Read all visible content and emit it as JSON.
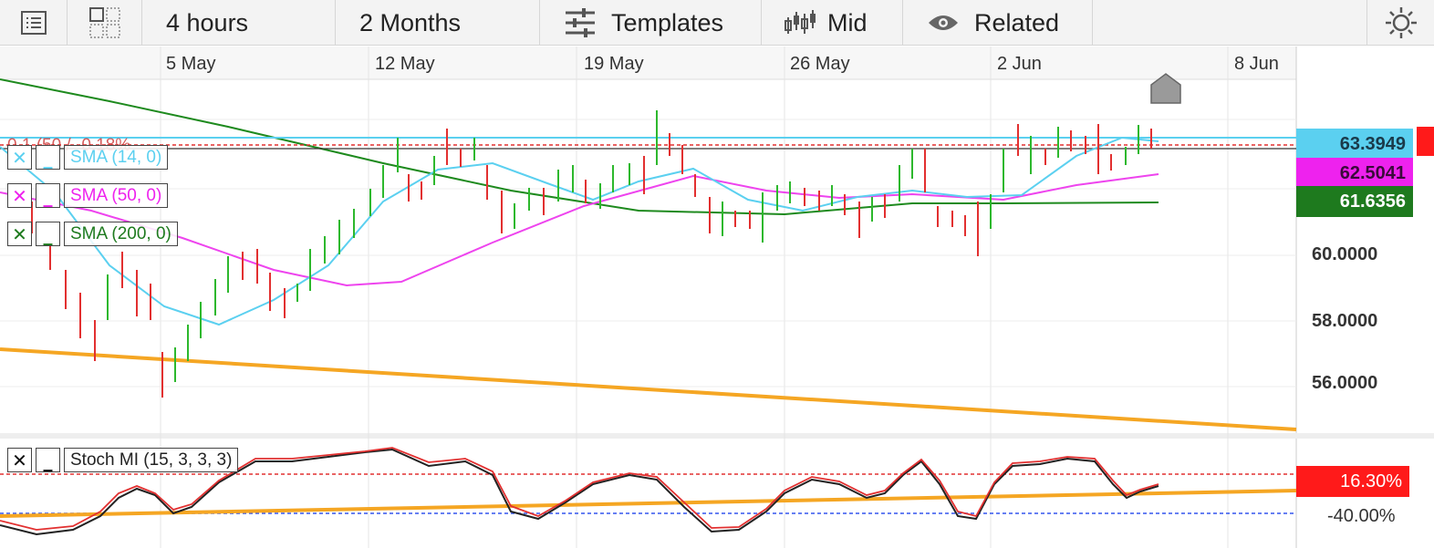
{
  "toolbar": {
    "interval_label": "4 hours",
    "range_label": "2 Months",
    "templates_label": "Templates",
    "price_type_label": "Mid",
    "related_label": "Related"
  },
  "x_axis": {
    "dates": [
      "5 May",
      "12 May",
      "19 May",
      "26 May",
      "2 Jun",
      "8 Jun"
    ]
  },
  "price_axis": {
    "ticks": [
      "60.0000",
      "58.0000",
      "56.0000"
    ]
  },
  "price_tags": {
    "sma14": "63.3949",
    "sma50": "62.5041",
    "sma200": "61.6356"
  },
  "indicators": {
    "sma14_label": "SMA (14, 0)",
    "sma50_label": "SMA (50, 0)",
    "sma200_label": "SMA (200, 0)",
    "stoch_label": "Stoch MI (15, 3, 3, 3)",
    "top_partial_label": "0.1 (50 / -0.18%"
  },
  "oscillator": {
    "current_value": "16.30%",
    "lower_level": "-40.00%"
  },
  "colors": {
    "sma14": "#5bd0f0",
    "sma50": "#ee44ee",
    "sma200": "#1e8a1e",
    "trendline": "#f5a623",
    "up_candle": "#2db82d",
    "down_candle": "#e23030",
    "current_tag": "#ff1a1a"
  }
}
